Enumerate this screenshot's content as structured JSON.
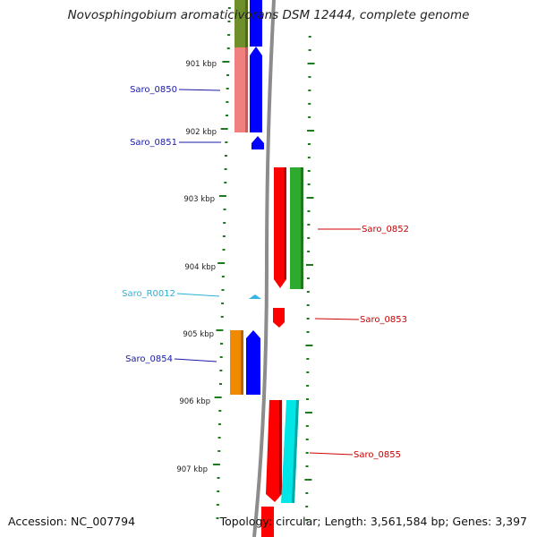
{
  "title": "Novosphingobium aromaticivorans DSM 12444, complete genome",
  "footer": {
    "accession": "Accession: NC_007794",
    "summary": "Topology: circular; Length: 3,561,584 bp; Genes: 3,397"
  },
  "ticks": [
    {
      "label": "901 kbp",
      "pos_kbp": 901
    },
    {
      "label": "902 kbp",
      "pos_kbp": 902
    },
    {
      "label": "903 kbp",
      "pos_kbp": 903
    },
    {
      "label": "904 kbp",
      "pos_kbp": 904
    },
    {
      "label": "905 kbp",
      "pos_kbp": 905
    },
    {
      "label": "906 kbp",
      "pos_kbp": 906
    },
    {
      "label": "907 kbp",
      "pos_kbp": 907
    }
  ],
  "gene_labels": [
    {
      "name": "Saro_0850",
      "color": "#1a1aa6"
    },
    {
      "name": "Saro_0851",
      "color": "#1a1aa6"
    },
    {
      "name": "Saro_0852",
      "color": "#cc0000"
    },
    {
      "name": "Saro_R0012",
      "color": "#2ab0d8"
    },
    {
      "name": "Saro_0853",
      "color": "#cc0000"
    },
    {
      "name": "Saro_0854",
      "color": "#1a1aa6"
    },
    {
      "name": "Saro_0855",
      "color": "#cc0000"
    }
  ],
  "colors": {
    "ruler": "#1e7a1e",
    "backbone": "#8c8c8c",
    "gene_blue": "#0000ff",
    "gene_red": "#ff0000",
    "gene_green": "#2eaa2e",
    "gene_cyan": "#00e5e5",
    "gene_orange": "#f08a00",
    "gene_olive": "#6f8f2a",
    "gene_pink": "#f08080",
    "rna_lightblue": "#33b5e5"
  }
}
